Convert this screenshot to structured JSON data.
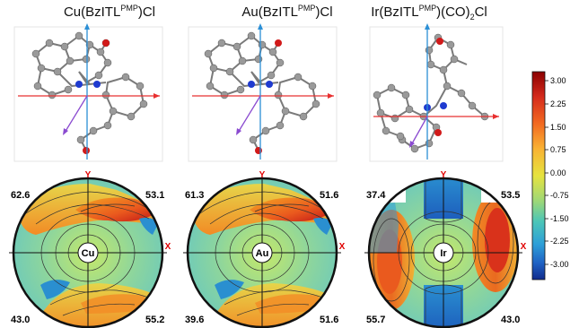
{
  "panels": [
    {
      "title_pre": "Cu(BzITL",
      "title_sup": "PMP",
      "title_post": ")Cl",
      "metal": "Cu",
      "quadrants": {
        "top_left": "62.6",
        "top_right": "53.1",
        "bottom_left": "43.0",
        "bottom_right": "55.2"
      }
    },
    {
      "title_pre": "Au(BzITL",
      "title_sup": "PMP",
      "title_post": ")Cl",
      "metal": "Au",
      "quadrants": {
        "top_left": "61.3",
        "top_right": "51.6",
        "bottom_left": "39.6",
        "bottom_right": "51.6"
      }
    },
    {
      "title_pre": "Ir(BzITL",
      "title_sup": "PMP",
      "title_post": ")(CO)",
      "title_sub": "2",
      "title_post2": "Cl",
      "metal": "Ir",
      "quadrants": {
        "top_left": "37.4",
        "top_right": "53.5",
        "bottom_left": "55.7",
        "bottom_right": "43.0"
      }
    }
  ],
  "axis_labels": {
    "x": "X",
    "y": "Y"
  },
  "colorbar": {
    "ticks": [
      "3.00",
      "2.25",
      "1.50",
      "0.75",
      "0.00",
      "-0.75",
      "-1.50",
      "-2.25",
      "-3.00"
    ],
    "colors": [
      "#8b0000",
      "#d42a1c",
      "#f26a21",
      "#f9b233",
      "#e6e33f",
      "#9fd876",
      "#4cc6b7",
      "#2d9fd8",
      "#1f62c4",
      "#102a8c"
    ]
  }
}
